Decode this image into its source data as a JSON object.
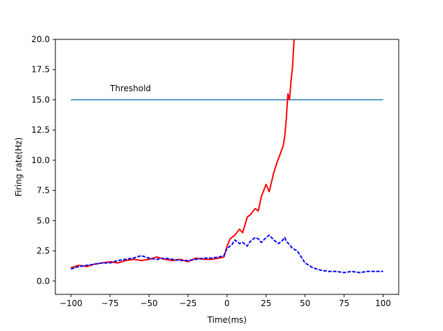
{
  "chart_data": {
    "type": "line",
    "title": "",
    "xlabel": "Time(ms)",
    "ylabel": "Firing rate(Hz)",
    "xlim": [
      -110,
      110
    ],
    "ylim": [
      -1.1,
      20
    ],
    "xticks": [
      -100,
      -75,
      -50,
      -25,
      0,
      25,
      50,
      75,
      100
    ],
    "yticks": [
      0.0,
      2.5,
      5.0,
      7.5,
      10.0,
      12.5,
      15.0,
      17.5,
      20.0
    ],
    "xtick_labels": [
      "−100",
      "−75",
      "−50",
      "−25",
      "0",
      "25",
      "50",
      "75",
      "100"
    ],
    "ytick_labels": [
      "0.0",
      "2.5",
      "5.0",
      "7.5",
      "10.0",
      "12.5",
      "15.0",
      "17.5",
      "20.0"
    ],
    "grid": false,
    "legend": "none",
    "annotation": {
      "text": "Threshold",
      "x": -75,
      "y": 16.0
    },
    "series": [
      {
        "color": "#1f77b4",
        "style": "solid",
        "x": [
          -100,
          100
        ],
        "y": [
          15,
          15
        ]
      },
      {
        "color": "#ff0000",
        "style": "solid",
        "x": [
          -100,
          -95,
          -90,
          -85,
          -80,
          -75,
          -70,
          -65,
          -60,
          -55,
          -50,
          -45,
          -40,
          -35,
          -30,
          -25,
          -20,
          -15,
          -10,
          -5,
          -2,
          0,
          2,
          5,
          8,
          10,
          13,
          15,
          18,
          20,
          22,
          25,
          27,
          30,
          32,
          34,
          36,
          37,
          38,
          39,
          40,
          41,
          42,
          43
        ],
        "y": [
          1.1,
          1.3,
          1.2,
          1.4,
          1.5,
          1.6,
          1.5,
          1.7,
          1.8,
          1.7,
          1.8,
          2.0,
          1.8,
          1.7,
          1.8,
          1.6,
          1.9,
          1.8,
          1.8,
          1.9,
          2.0,
          2.9,
          3.5,
          3.8,
          4.3,
          4.0,
          5.3,
          5.5,
          6.0,
          5.8,
          7.0,
          8.0,
          7.4,
          9.0,
          9.8,
          10.5,
          11.2,
          12.0,
          13.5,
          15.5,
          15.0,
          16.5,
          17.8,
          20.0
        ]
      },
      {
        "color": "#0000ff",
        "style": "dashed",
        "x": [
          -100,
          -95,
          -90,
          -85,
          -80,
          -75,
          -70,
          -65,
          -60,
          -55,
          -50,
          -45,
          -40,
          -35,
          -30,
          -25,
          -20,
          -15,
          -10,
          -5,
          -2,
          0,
          3,
          5,
          8,
          10,
          13,
          15,
          18,
          20,
          22,
          25,
          27,
          30,
          33,
          35,
          37,
          38,
          40,
          42,
          45,
          48,
          50,
          55,
          60,
          65,
          70,
          75,
          80,
          85,
          90,
          95,
          100
        ],
        "y": [
          1.0,
          1.2,
          1.3,
          1.4,
          1.5,
          1.5,
          1.7,
          1.8,
          1.9,
          2.1,
          1.9,
          1.8,
          1.9,
          1.8,
          1.7,
          1.7,
          1.8,
          1.9,
          1.9,
          2.0,
          2.1,
          2.7,
          3.0,
          3.4,
          3.1,
          3.2,
          2.9,
          3.3,
          3.6,
          3.5,
          3.2,
          3.6,
          3.8,
          3.4,
          3.1,
          3.3,
          3.6,
          3.3,
          3.0,
          2.7,
          2.5,
          1.9,
          1.5,
          1.1,
          0.9,
          0.8,
          0.8,
          0.7,
          0.8,
          0.7,
          0.8,
          0.8,
          0.8
        ]
      }
    ]
  }
}
